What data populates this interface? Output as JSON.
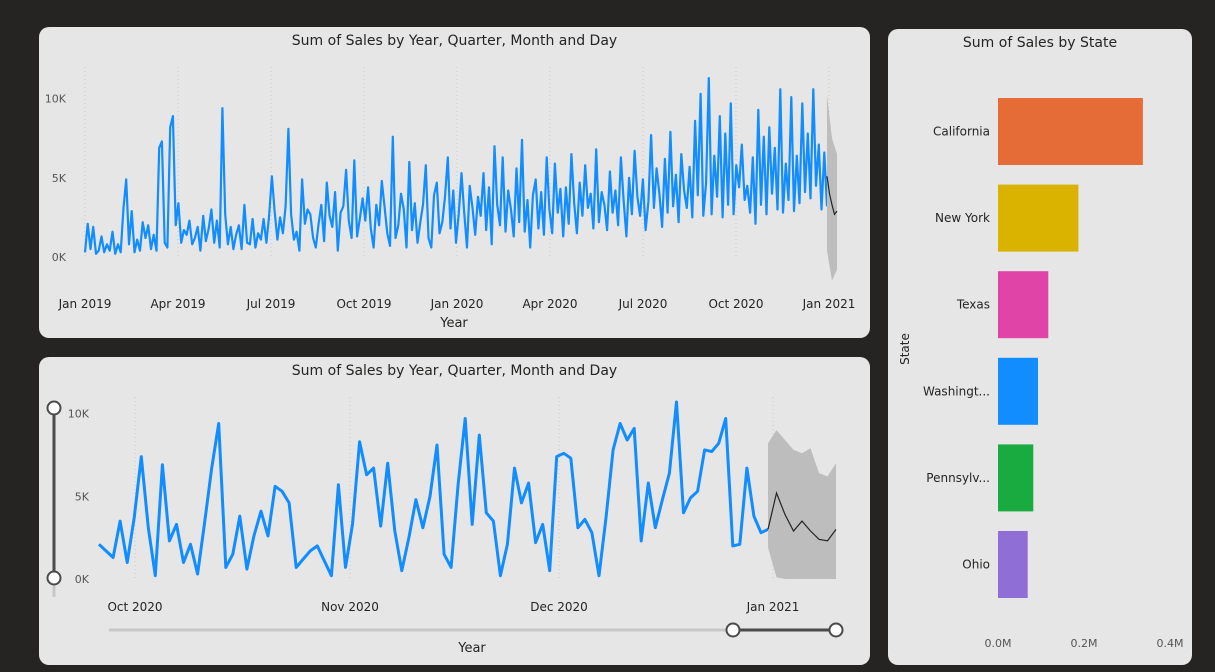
{
  "colors": {
    "background": "#252423",
    "card": "#e6e6e6",
    "series": "#118dff",
    "forecast": "#252423",
    "band": "#bdbdbd"
  },
  "chart_data": [
    {
      "id": "top",
      "type": "line",
      "title": "Sum of Sales by Year, Quarter, Month and Day",
      "xlabel": "Year",
      "ylabel": "",
      "x_ticks": [
        "Jan 2019",
        "Apr 2019",
        "Jul 2019",
        "Oct 2019",
        "Jan 2020",
        "Apr 2020",
        "Jul 2020",
        "Oct 2020",
        "Jan 2021"
      ],
      "y_ticks": [
        "0K",
        "5K",
        "10K"
      ],
      "ylim": [
        0,
        12000
      ],
      "x_range": [
        "2019-01-01",
        "2021-01-10"
      ],
      "series": [
        {
          "values_note_free": true,
          "values": [
            300,
            2100,
            500,
            1900,
            200,
            400,
            1300,
            300,
            800,
            400,
            1600,
            200,
            800,
            300,
            3100,
            4900,
            800,
            2900,
            300,
            1100,
            400,
            2200,
            1200,
            2000,
            500,
            1400,
            400,
            6900,
            7300,
            900,
            600,
            8200,
            8900,
            2000,
            3400,
            900,
            1700,
            1400,
            2300,
            800,
            1200,
            1900,
            400,
            2600,
            1000,
            1800,
            3000,
            900,
            2300,
            600,
            9400,
            2700,
            800,
            1900,
            500,
            1400,
            2000,
            500,
            3300,
            900,
            800,
            2400,
            600,
            1500,
            1100,
            2400,
            900,
            2600,
            5100,
            2900,
            1100,
            2500,
            1500,
            3200,
            8100,
            2700,
            1100,
            1600,
            400,
            4900,
            2100,
            3000,
            2700,
            1200,
            600,
            2100,
            3300,
            1000,
            4700,
            2600,
            1900,
            4100,
            400,
            2800,
            3200,
            5500,
            2300,
            1200,
            6100,
            1300,
            2400,
            3700,
            2300,
            4400,
            1800,
            600,
            3300,
            2000,
            4800,
            3200,
            1500,
            700,
            7600,
            1200,
            2000,
            4000,
            3000,
            600,
            6000,
            1700,
            3400,
            900,
            2200,
            3300,
            5800,
            1200,
            600,
            3900,
            4700,
            1500,
            2200,
            3800,
            6300,
            1800,
            4200,
            900,
            2700,
            5300,
            2800,
            600,
            4500,
            3100,
            1400,
            3800,
            2600,
            5300,
            1700,
            4400,
            800,
            7000,
            3300,
            2000,
            6300,
            1600,
            4200,
            3000,
            1300,
            5600,
            2200,
            7400,
            1600,
            3600,
            600,
            3900,
            4900,
            1800,
            4100,
            1400,
            6300,
            3000,
            1500,
            5900,
            2800,
            4300,
            1300,
            4400,
            2100,
            6500,
            3400,
            1500,
            4700,
            2600,
            5800,
            3100,
            4000,
            1800,
            6800,
            2200,
            4100,
            3300,
            1700,
            5400,
            2800,
            4200,
            2000,
            6300,
            3600,
            1300,
            5000,
            2700,
            6700,
            3800,
            2600,
            4900,
            1700,
            3500,
            7700,
            3100,
            5600,
            4000,
            1900,
            6200,
            2800,
            7900,
            3200,
            5200,
            2200,
            6500,
            4200,
            3100,
            5700,
            2500,
            8600,
            3900,
            10300,
            2600,
            4700,
            11300,
            2700,
            6400,
            3800,
            8900,
            2500,
            7800,
            3300,
            9700,
            2700,
            5800,
            4400,
            7100,
            3600,
            4500,
            2800,
            6300,
            2100,
            9300,
            3300,
            7600,
            2700,
            8200,
            4000,
            6900,
            3000,
            10600,
            2800,
            5900,
            3600,
            10100,
            2900,
            6400,
            3400,
            9700,
            4100,
            7800,
            3700,
            10600,
            4500,
            7100,
            3000,
            6600,
            3200
          ]
        },
        {
          "name": "",
          "values": [
            5100,
            4000,
            3300,
            2700,
            2900
          ]
        }
      ],
      "forecast": true
    },
    {
      "id": "bottom",
      "type": "line",
      "title": "Sum of Sales by Year, Quarter, Month and Day",
      "xlabel": "Year",
      "ylabel": "",
      "x_ticks": [
        "Oct 2020",
        "Nov 2020",
        "Dec 2020",
        "Jan 2021"
      ],
      "y_ticks": [
        "0K",
        "5K",
        "10K"
      ],
      "ylim": [
        0,
        11000
      ],
      "series": [
        {
          "name": "",
          "values": [
            2100,
            1700,
            1300,
            3500,
            1000,
            3700,
            7400,
            3100,
            200,
            6900,
            2300,
            3300,
            1000,
            2100,
            300,
            3400,
            6700,
            9400,
            700,
            1500,
            3800,
            600,
            2600,
            4100,
            2600,
            5600,
            5300,
            4600,
            700,
            1200,
            1700,
            2000,
            1100,
            200,
            5700,
            700,
            3300,
            8300,
            6300,
            6700,
            3200,
            7000,
            2900,
            500,
            2500,
            4800,
            3100,
            5000,
            8100,
            1500,
            700,
            5700,
            9700,
            3300,
            8700,
            4000,
            3500,
            200,
            2100,
            6700,
            4600,
            5800,
            2200,
            3300,
            500,
            7400,
            7600,
            7300,
            3100,
            3600,
            2800,
            200,
            3700,
            7800,
            9400,
            8400,
            9100,
            2300,
            5800,
            3100,
            4800,
            6400,
            10700,
            4000,
            4900,
            5300,
            7800,
            7700,
            8200,
            9700,
            2000,
            2100,
            6700,
            3800,
            2800,
            3000
          ]
        },
        {
          "name": "",
          "values": [
            3000,
            5200,
            3900,
            2900,
            3500,
            2900,
            2400,
            2300,
            3000
          ]
        }
      ],
      "band_upper": [
        8200,
        9000,
        8400,
        7800,
        7600,
        7900,
        6400,
        6200,
        7000
      ],
      "band_lower": [
        1900,
        100,
        0,
        0,
        0,
        0,
        0,
        0,
        0
      ],
      "forecast": true
    },
    {
      "id": "right",
      "type": "bar",
      "orientation": "horizontal",
      "title": "Sum of Sales by State",
      "ylabel": "State",
      "xlabel": "",
      "categories": [
        "California",
        "New York",
        "Texas",
        "Washingt...",
        "Pennsylv...",
        "Ohio"
      ],
      "values": [
        337000,
        187000,
        117000,
        93000,
        82000,
        69000
      ],
      "colors": [
        "#e66c37",
        "#d9b300",
        "#e044a7",
        "#118dff",
        "#1aab40",
        "#8f6ed5"
      ],
      "x_ticks": [
        "0.0M",
        "0.2M",
        "0.4M"
      ],
      "xlim": [
        0,
        400000
      ]
    }
  ]
}
